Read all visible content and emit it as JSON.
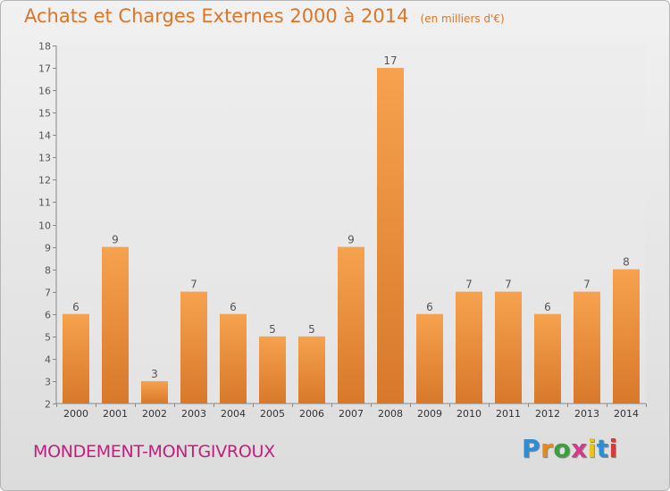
{
  "header": {
    "title": "Achats et Charges Externes 2000 à 2014",
    "unit": "(en milliers d'€)"
  },
  "footer": {
    "commune": "MONDEMENT-MONTGIVROUX",
    "logo_text": "Proxiti"
  },
  "colors": {
    "title": "#d9762a",
    "commune": "#c11f7c",
    "bar_light": "#f6a24e",
    "bar_dark": "#d8782a"
  },
  "chart_data": {
    "type": "bar",
    "categories": [
      "2000",
      "2001",
      "2002",
      "2003",
      "2004",
      "2005",
      "2006",
      "2007",
      "2008",
      "2009",
      "2010",
      "2011",
      "2012",
      "2013",
      "2014"
    ],
    "values": [
      6,
      9,
      3,
      7,
      6,
      5,
      5,
      9,
      17,
      6,
      7,
      7,
      6,
      7,
      8
    ],
    "ylim": [
      2,
      18
    ],
    "yticks": [
      2,
      3,
      4,
      5,
      6,
      7,
      8,
      9,
      10,
      11,
      12,
      13,
      14,
      15,
      16,
      17,
      18
    ],
    "data_labels": true,
    "grid": false
  }
}
